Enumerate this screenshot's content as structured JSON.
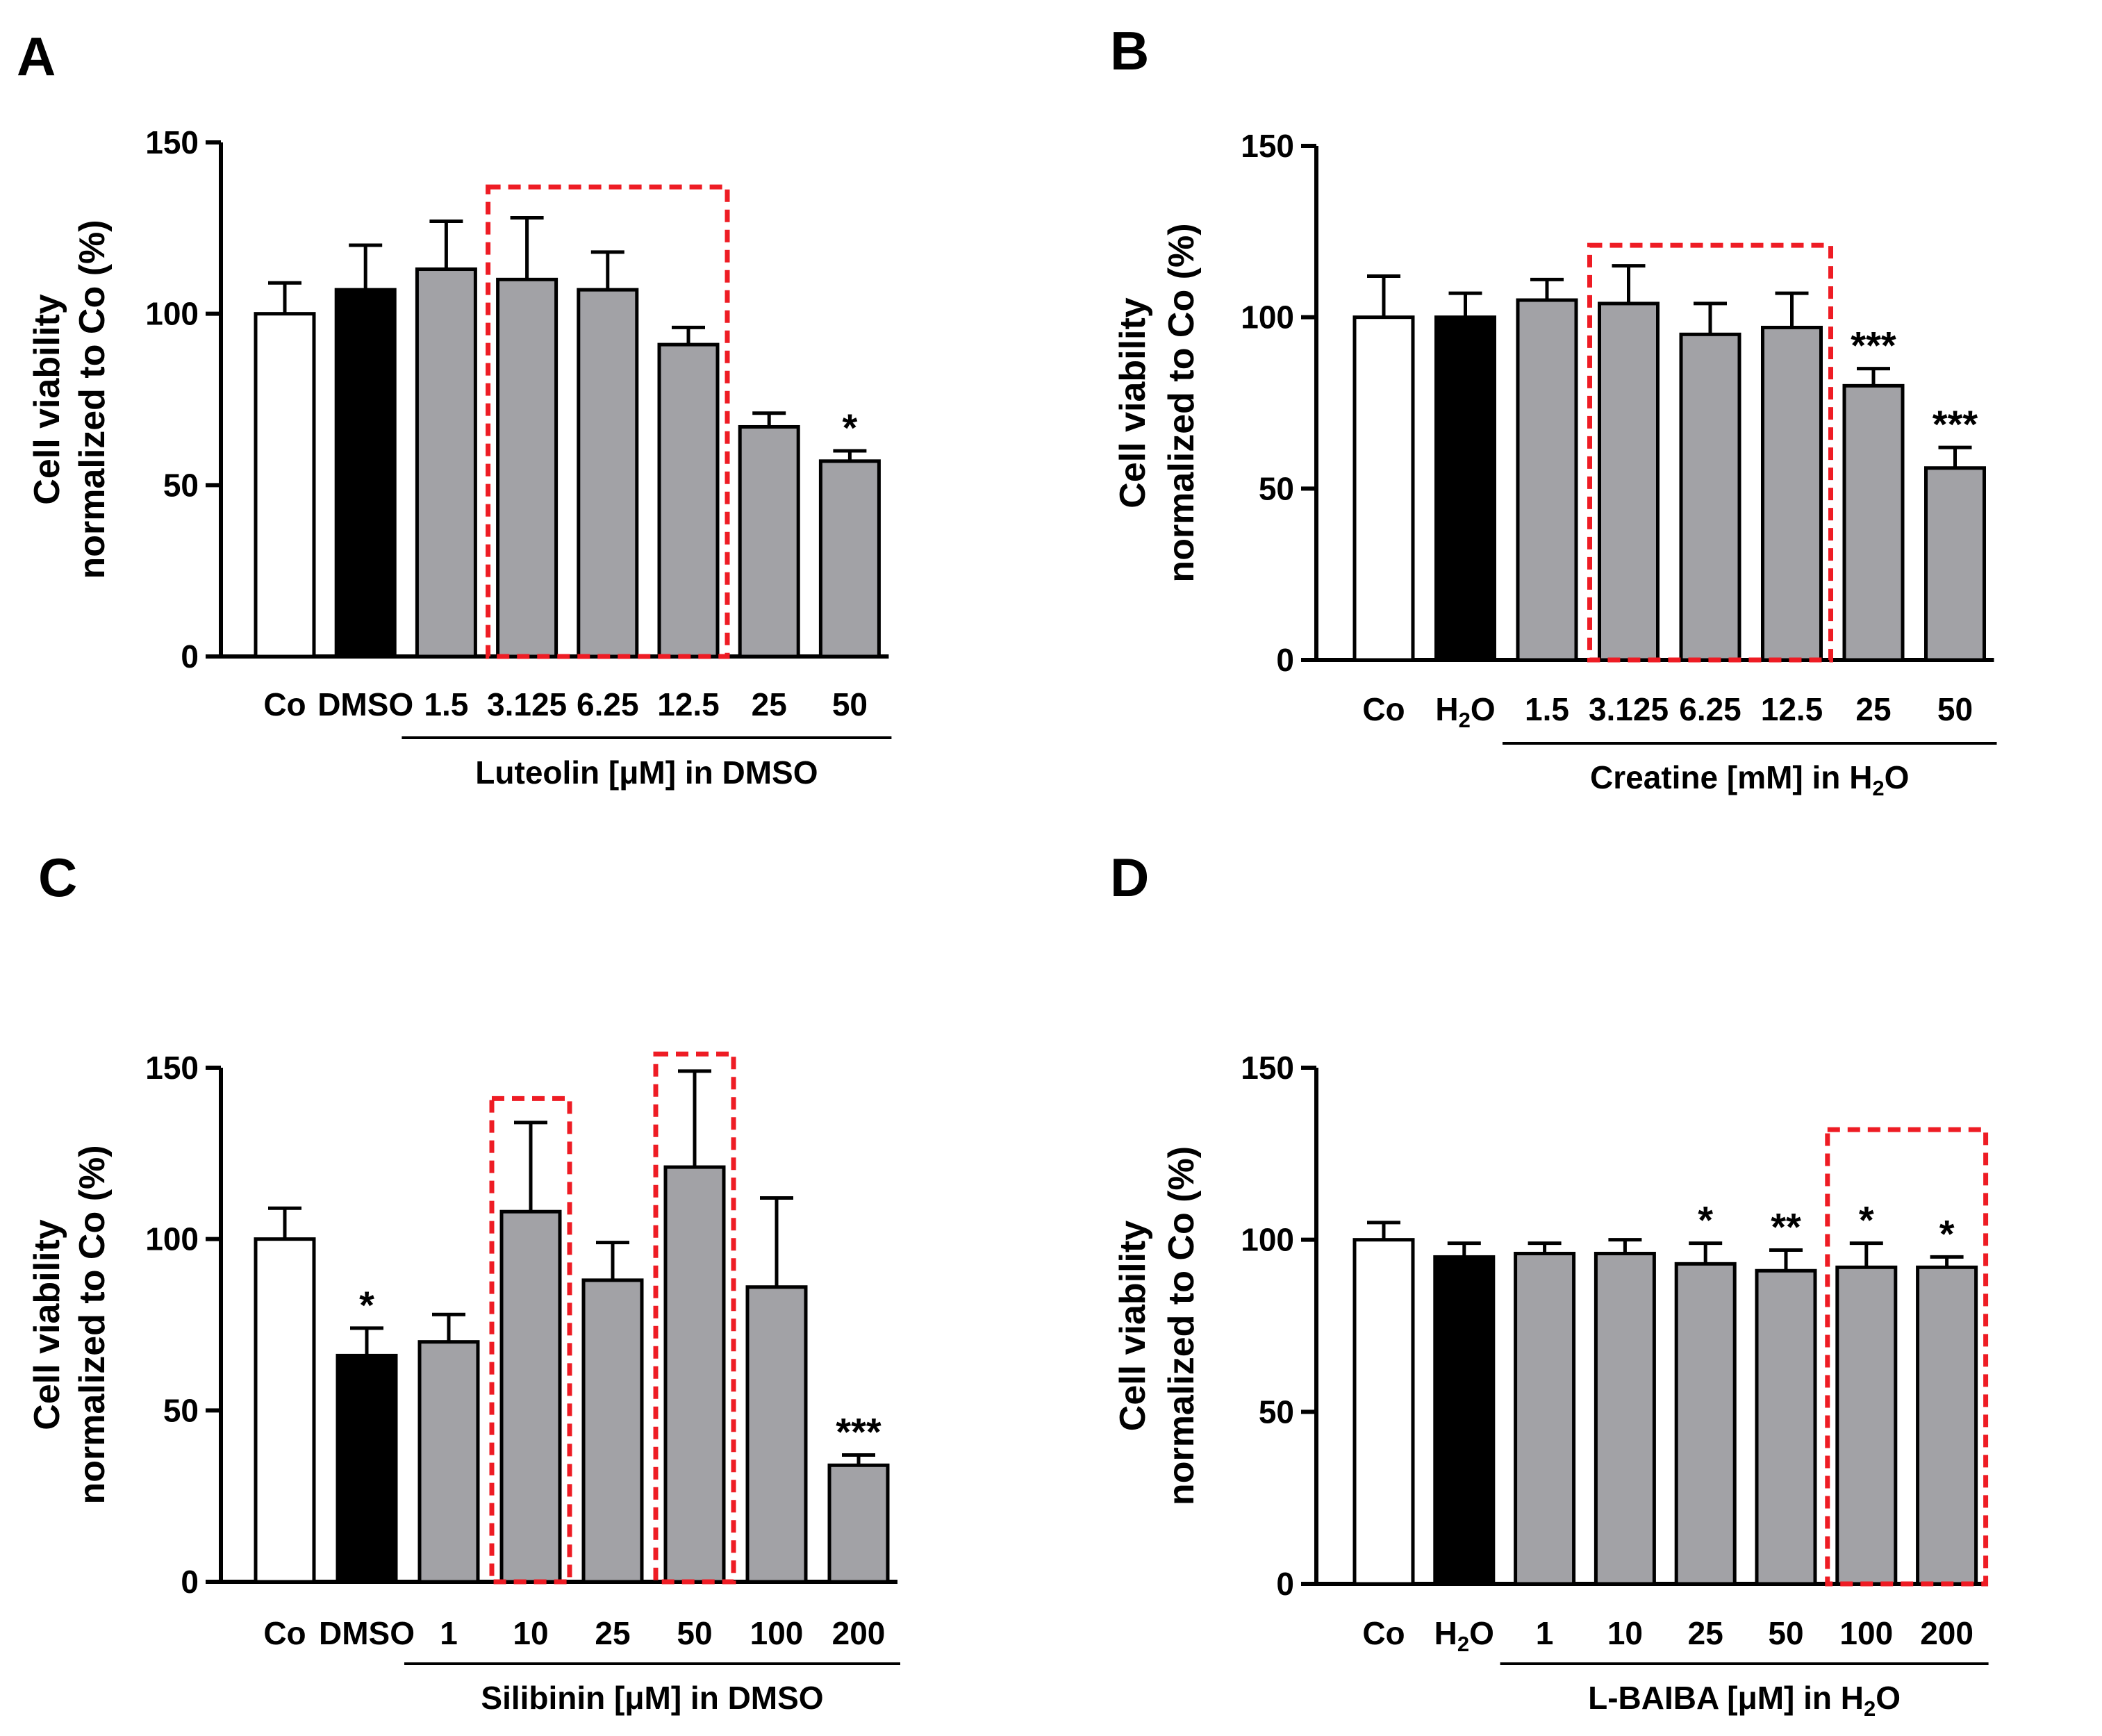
{
  "chart_data": [
    {
      "panel": "A",
      "type": "bar",
      "ylabel": [
        "Cell viability",
        "normalized to Co (%)"
      ],
      "ylim": [
        0,
        150
      ],
      "yticks": [
        "0",
        "50",
        "100",
        "150"
      ],
      "categories": [
        "Co",
        "DMSO",
        "1.5",
        "3.125",
        "6.25",
        "12.5",
        "25",
        "50"
      ],
      "values": [
        100,
        107,
        113,
        110,
        107,
        91,
        67,
        57
      ],
      "errors": [
        9,
        13,
        14,
        18,
        11,
        5,
        4,
        3
      ],
      "bar_styles": [
        "white",
        "black",
        "gray",
        "gray",
        "gray",
        "gray",
        "gray",
        "gray"
      ],
      "significance": [
        "",
        "",
        "",
        "",
        "",
        "",
        "",
        "*"
      ],
      "group_label": "Luteolin [μM] in DMSO",
      "group_range": [
        2,
        7
      ],
      "highlights": [
        {
          "from": 3,
          "to": 5,
          "top": 137
        }
      ]
    },
    {
      "panel": "B",
      "type": "bar",
      "ylabel": [
        "Cell viability",
        "normalized to Co (%)"
      ],
      "ylim": [
        0,
        150
      ],
      "yticks": [
        "0",
        "50",
        "100",
        "150"
      ],
      "categories": [
        "Co",
        "H2O",
        "1.5",
        "3.125",
        "6.25",
        "12.5",
        "25",
        "50"
      ],
      "values": [
        100,
        100,
        105,
        104,
        95,
        97,
        80,
        56
      ],
      "errors": [
        12,
        7,
        6,
        11,
        9,
        10,
        5,
        6
      ],
      "bar_styles": [
        "white",
        "black",
        "gray",
        "gray",
        "gray",
        "gray",
        "gray",
        "gray"
      ],
      "significance": [
        "",
        "",
        "",
        "",
        "",
        "",
        "***",
        "***"
      ],
      "group_label": "Creatine [mM] in H2O",
      "group_range": [
        2,
        7
      ],
      "highlights": [
        {
          "from": 3,
          "to": 5,
          "top": 121
        }
      ]
    },
    {
      "panel": "C",
      "type": "bar",
      "ylabel": [
        "Cell viability",
        "normalized to Co (%)"
      ],
      "ylim": [
        0,
        150
      ],
      "yticks": [
        "0",
        "50",
        "100",
        "150"
      ],
      "categories": [
        "Co",
        "DMSO",
        "1",
        "10",
        "25",
        "50",
        "100",
        "200"
      ],
      "values": [
        100,
        66,
        70,
        108,
        88,
        121,
        86,
        34
      ],
      "errors": [
        9,
        8,
        8,
        26,
        11,
        28,
        26,
        3
      ],
      "bar_styles": [
        "white",
        "black",
        "gray",
        "gray",
        "gray",
        "gray",
        "gray",
        "gray"
      ],
      "significance": [
        "",
        "*",
        "",
        "",
        "",
        "",
        "",
        "***"
      ],
      "group_label": "Silibinin [μM] in DMSO",
      "group_range": [
        2,
        7
      ],
      "highlights": [
        {
          "from": 3,
          "to": 3,
          "top": 141
        },
        {
          "from": 5,
          "to": 5,
          "top": 154
        }
      ]
    },
    {
      "panel": "D",
      "type": "bar",
      "ylabel": [
        "Cell viability",
        "normalized to Co (%)"
      ],
      "ylim": [
        0,
        150
      ],
      "yticks": [
        "0",
        "50",
        "100",
        "150"
      ],
      "categories": [
        "Co",
        "H2O",
        "1",
        "10",
        "25",
        "50",
        "100",
        "200"
      ],
      "values": [
        100,
        95,
        96,
        96,
        93,
        91,
        92,
        92
      ],
      "errors": [
        5,
        4,
        3,
        4,
        6,
        6,
        7,
        3
      ],
      "bar_styles": [
        "white",
        "black",
        "gray",
        "gray",
        "gray",
        "gray",
        "gray",
        "gray"
      ],
      "significance": [
        "",
        "",
        "",
        "",
        "*",
        "**",
        "*",
        "*"
      ],
      "group_label": "L-BAIBA [μM] in H2O",
      "group_range": [
        2,
        7
      ],
      "highlights": [
        {
          "from": 6,
          "to": 7,
          "top": 132
        }
      ]
    }
  ],
  "colors": {
    "bar_gray": "#a2a2a6",
    "bar_black": "#000000",
    "bar_white": "#ffffff",
    "highlight": "#ee1c24"
  }
}
